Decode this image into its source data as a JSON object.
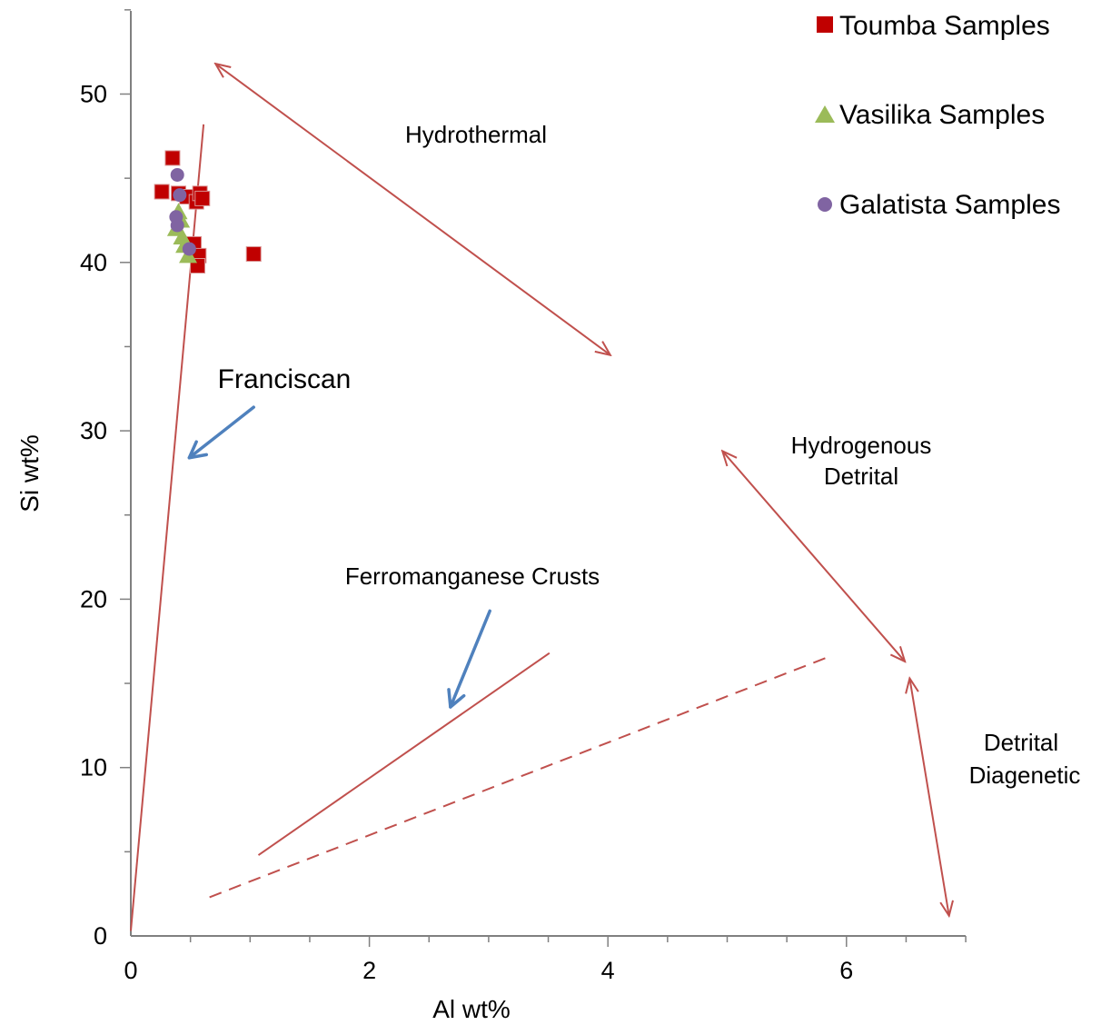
{
  "chart_data": {
    "type": "scatter",
    "xlabel": "Al wt%",
    "ylabel": "Si wt%",
    "xlim": [
      0,
      7
    ],
    "ylim": [
      0,
      55
    ],
    "x_ticks": [
      "0",
      "2",
      "4",
      "6"
    ],
    "y_ticks": [
      "0",
      "10",
      "20",
      "30",
      "40",
      "50"
    ],
    "grid": false,
    "legend_position": "top-right",
    "series": [
      {
        "name": "Toumba Samples",
        "marker": "square",
        "color": "#c00000",
        "points": [
          {
            "x": 0.26,
            "y": 44.2
          },
          {
            "x": 0.35,
            "y": 46.2
          },
          {
            "x": 0.4,
            "y": 44.1
          },
          {
            "x": 0.47,
            "y": 43.9
          },
          {
            "x": 0.55,
            "y": 43.6
          },
          {
            "x": 0.58,
            "y": 44.1
          },
          {
            "x": 0.6,
            "y": 43.8
          },
          {
            "x": 0.53,
            "y": 41.1
          },
          {
            "x": 0.57,
            "y": 40.4
          },
          {
            "x": 0.56,
            "y": 39.8
          },
          {
            "x": 1.03,
            "y": 40.5
          }
        ]
      },
      {
        "name": "Vasilika Samples",
        "marker": "triangle",
        "color": "#9bbb59",
        "points": [
          {
            "x": 0.38,
            "y": 42.0
          },
          {
            "x": 0.4,
            "y": 43.0
          },
          {
            "x": 0.42,
            "y": 42.5
          },
          {
            "x": 0.43,
            "y": 41.5
          },
          {
            "x": 0.45,
            "y": 41.0
          },
          {
            "x": 0.48,
            "y": 40.4
          }
        ]
      },
      {
        "name": "Galatista Samples",
        "marker": "circle",
        "color": "#8064a2",
        "points": [
          {
            "x": 0.39,
            "y": 45.2
          },
          {
            "x": 0.41,
            "y": 44.0
          },
          {
            "x": 0.38,
            "y": 42.7
          },
          {
            "x": 0.39,
            "y": 42.2
          },
          {
            "x": 0.49,
            "y": 40.8
          }
        ]
      }
    ],
    "annotations": [
      {
        "text": "Hydrothermal"
      },
      {
        "text": "Franciscan"
      },
      {
        "text": "Hydrogenous"
      },
      {
        "text": "Detrital"
      },
      {
        "text": "Ferromanganese Crusts"
      },
      {
        "text": "Detrital"
      },
      {
        "text": "Diagenetic"
      }
    ],
    "reference_lines": [
      {
        "style": "solid",
        "from": [
          0,
          0.3
        ],
        "to": [
          0.61,
          48.2
        ]
      },
      {
        "style": "solid",
        "from": [
          1.07,
          4.8
        ],
        "to": [
          3.51,
          16.8
        ]
      },
      {
        "style": "dashed",
        "from": [
          0.66,
          2.3
        ],
        "to": [
          5.86,
          16.6
        ]
      }
    ],
    "double_arrows": [
      {
        "from": [
          0.71,
          51.8
        ],
        "to": [
          4.02,
          34.5
        ]
      },
      {
        "from": [
          4.96,
          28.8
        ],
        "to": [
          6.49,
          16.3
        ]
      },
      {
        "from": [
          6.53,
          15.3
        ],
        "to": [
          6.86,
          1.2
        ]
      }
    ],
    "pointer_arrows": [
      {
        "from": [
          1.03,
          31.4
        ],
        "to": [
          0.49,
          28.4
        ]
      },
      {
        "from": [
          3.01,
          19.3
        ],
        "to": [
          2.68,
          13.6
        ]
      }
    ],
    "colors": {
      "annotation_line": "#c0504d",
      "pointer_arrow": "#4f81bd",
      "axis": "#808080"
    }
  }
}
